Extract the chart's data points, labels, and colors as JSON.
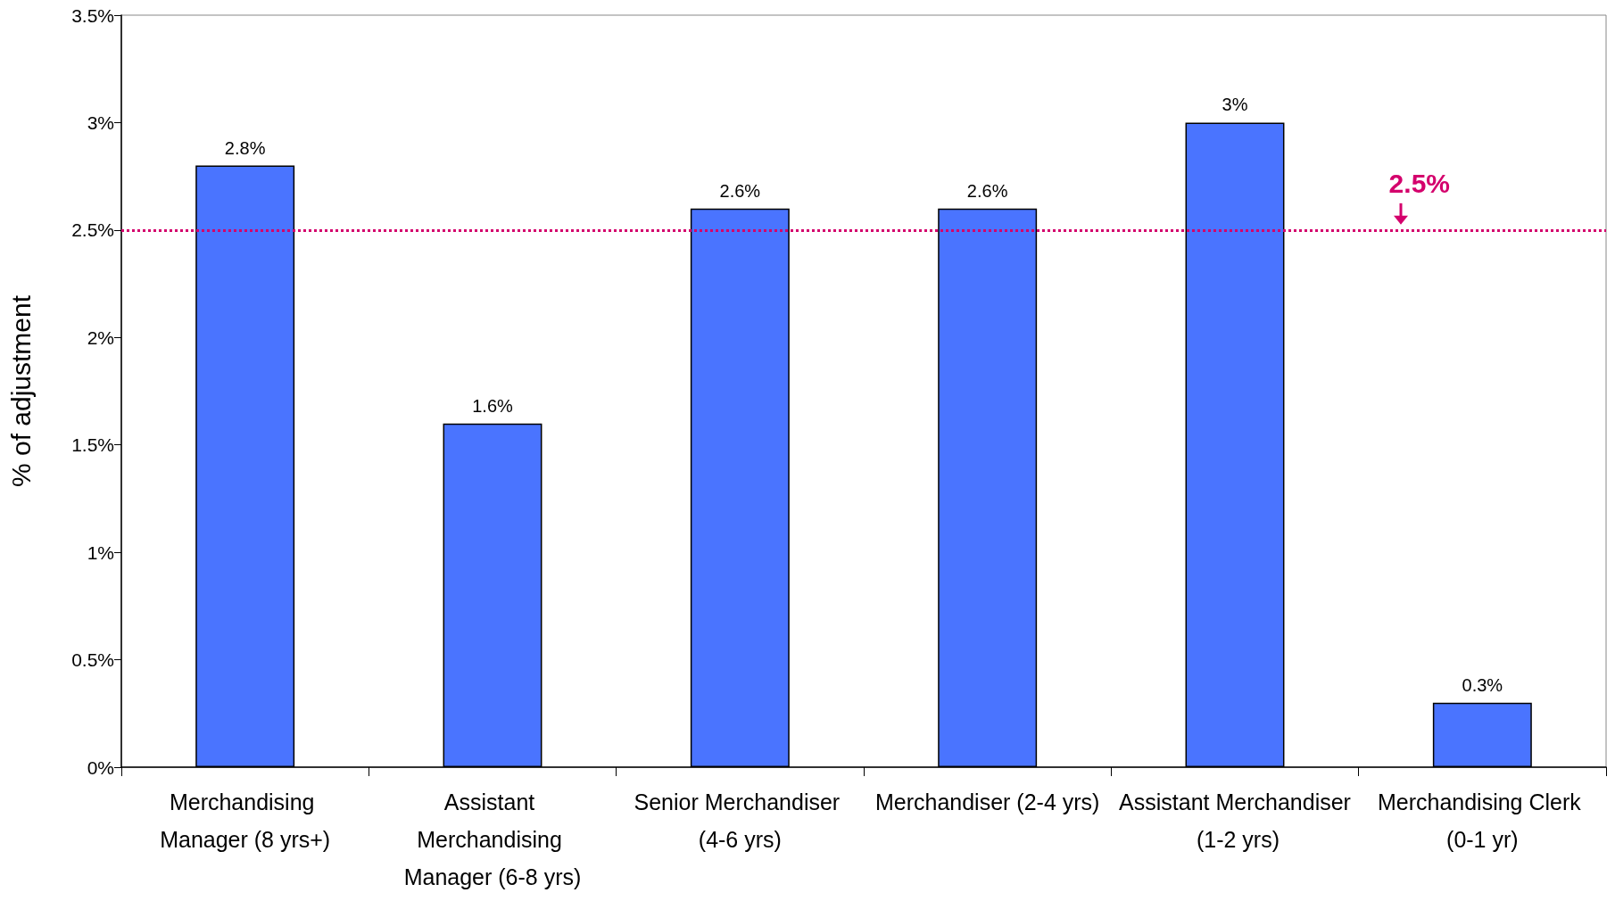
{
  "chart_data": {
    "type": "bar",
    "ylabel": "% of adjustment",
    "categories": [
      "Merchandising Manager (8 yrs+)",
      "Assistant Merchandising Manager (6-8 yrs)",
      "Senior Merchandiser (4-6 yrs)",
      "Merchandiser (2-4 yrs)",
      "Assistant Merchandiser (1-2 yrs)",
      "Merchandising Clerk (0-1 yr)"
    ],
    "values": [
      2.8,
      1.6,
      2.6,
      2.6,
      3,
      0.3
    ],
    "value_labels": [
      "2.8%",
      "1.6%",
      "2.6%",
      "2.6%",
      "3%",
      "0.3%"
    ],
    "color": "#4a74ff",
    "ylim": [
      0,
      3.5
    ],
    "yticks": [
      {
        "value": 0,
        "label": "0%"
      },
      {
        "value": 0.5,
        "label": "0.5%"
      },
      {
        "value": 1,
        "label": "1%"
      },
      {
        "value": 1.5,
        "label": "1.5%"
      },
      {
        "value": 2,
        "label": "2%"
      },
      {
        "value": 2.5,
        "label": "2.5%"
      },
      {
        "value": 3,
        "label": "3%"
      },
      {
        "value": 3.5,
        "label": "3.5%"
      }
    ],
    "ref_lines": [
      {
        "axis": "y",
        "value": 2.5,
        "label": "2.5%",
        "color": "#d4006c",
        "line_style": "dotted"
      }
    ],
    "grid": false
  }
}
